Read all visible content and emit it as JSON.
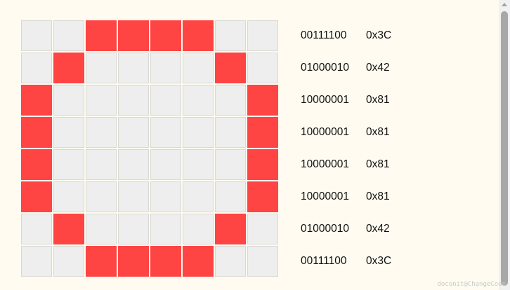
{
  "colors": {
    "background": "#fffbf0",
    "cell_off": "#eeeeee",
    "cell_on": "#ff4444",
    "text": "#111111"
  },
  "grid": {
    "rows": [
      [
        0,
        0,
        1,
        1,
        1,
        1,
        0,
        0
      ],
      [
        0,
        1,
        0,
        0,
        0,
        0,
        1,
        0
      ],
      [
        1,
        0,
        0,
        0,
        0,
        0,
        0,
        1
      ],
      [
        1,
        0,
        0,
        0,
        0,
        0,
        0,
        1
      ],
      [
        1,
        0,
        0,
        0,
        0,
        0,
        0,
        1
      ],
      [
        1,
        0,
        0,
        0,
        0,
        0,
        0,
        1
      ],
      [
        0,
        1,
        0,
        0,
        0,
        0,
        1,
        0
      ],
      [
        0,
        0,
        1,
        1,
        1,
        1,
        0,
        0
      ]
    ]
  },
  "codes": [
    {
      "bin": "00111100",
      "hex": "0x3C"
    },
    {
      "bin": "01000010",
      "hex": "0x42"
    },
    {
      "bin": "10000001",
      "hex": "0x81"
    },
    {
      "bin": "10000001",
      "hex": "0x81"
    },
    {
      "bin": "10000001",
      "hex": "0x81"
    },
    {
      "bin": "10000001",
      "hex": "0x81"
    },
    {
      "bin": "01000010",
      "hex": "0x42"
    },
    {
      "bin": "00111100",
      "hex": "0x3C"
    }
  ],
  "watermark": "doconit@ChangeCode"
}
